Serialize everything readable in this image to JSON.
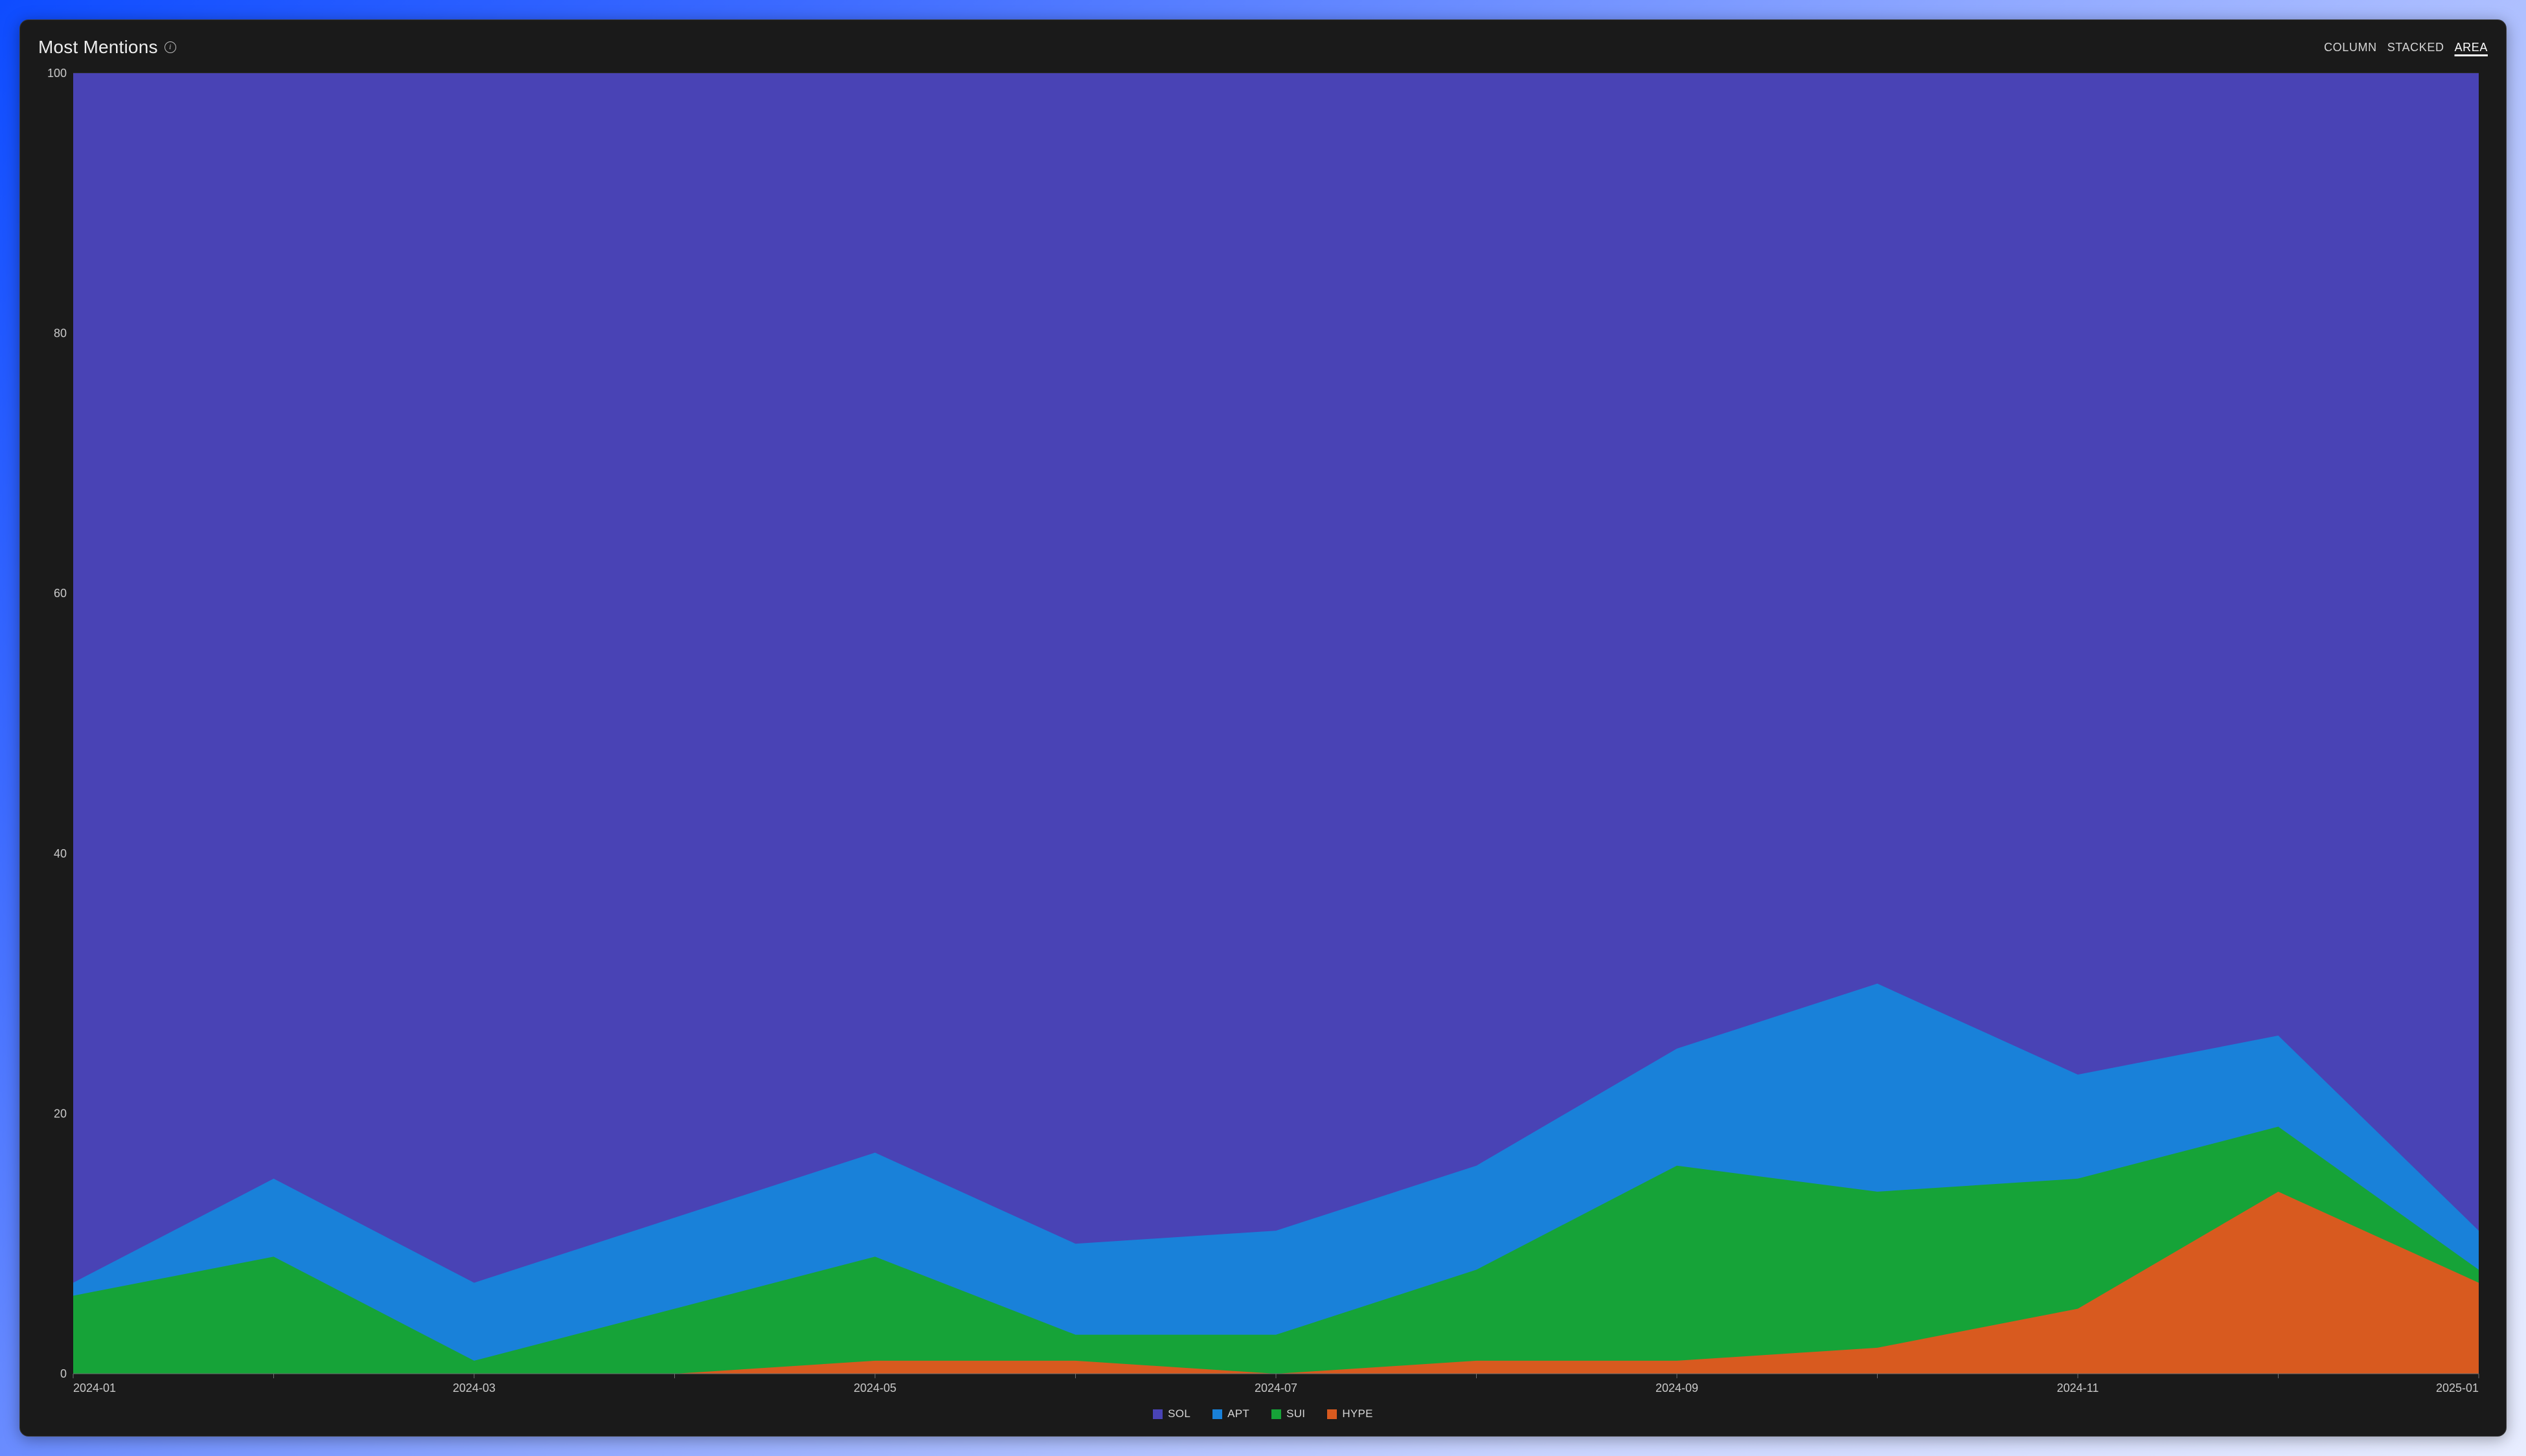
{
  "card": {
    "title": "Most Mentions",
    "background_color": "#1a1a1a",
    "border_color": "#373737",
    "title_color": "#ededed",
    "title_fontsize": 28
  },
  "tabs": {
    "items": [
      {
        "label": "COLUMN",
        "active": false
      },
      {
        "label": "STACKED",
        "active": false
      },
      {
        "label": "AREA",
        "active": true
      }
    ],
    "color": "#d6d6d6",
    "active_color": "#ffffff",
    "fontsize": 18
  },
  "chart": {
    "type": "area-stacked-100",
    "ylim": [
      0,
      100
    ],
    "yticks": [
      0,
      20,
      40,
      60,
      80,
      100
    ],
    "xcategories": [
      "2024-01",
      "2024-02",
      "2024-03",
      "2024-04",
      "2024-05",
      "2024-06",
      "2024-07",
      "2024-08",
      "2024-09",
      "2024-10",
      "2024-11",
      "2024-12",
      "2025-01"
    ],
    "xlabels_shown": [
      "2024-01",
      "2024-03",
      "2024-05",
      "2024-07",
      "2024-09",
      "2024-11",
      "2025-01"
    ],
    "grid_color": "#3a3a3a",
    "axis_line_color": "#6f6f6f",
    "axis_text_color": "#c9c9c9",
    "axis_fontsize": 18,
    "series": [
      {
        "name": "HYPE",
        "color": "#d85a1f",
        "values": [
          0,
          0,
          0,
          0,
          1,
          1,
          0,
          1,
          1,
          2,
          5,
          14,
          7
        ]
      },
      {
        "name": "SUI",
        "color": "#16a338",
        "values": [
          6,
          9,
          1,
          5,
          9,
          3,
          3,
          8,
          16,
          14,
          15,
          19,
          8
        ]
      },
      {
        "name": "APT",
        "color": "#1981d9",
        "values": [
          7,
          15,
          7,
          12,
          17,
          10,
          11,
          16,
          25,
          30,
          23,
          26,
          11
        ]
      },
      {
        "name": "SOL",
        "color": "#4943b5",
        "values": [
          100,
          100,
          100,
          100,
          100,
          100,
          100,
          100,
          100,
          100,
          100,
          100,
          100
        ]
      }
    ],
    "legend_order": [
      "SOL",
      "APT",
      "SUI",
      "HYPE"
    ],
    "legend_fontsize": 17,
    "legend_text_color": "#d6d6d6"
  }
}
